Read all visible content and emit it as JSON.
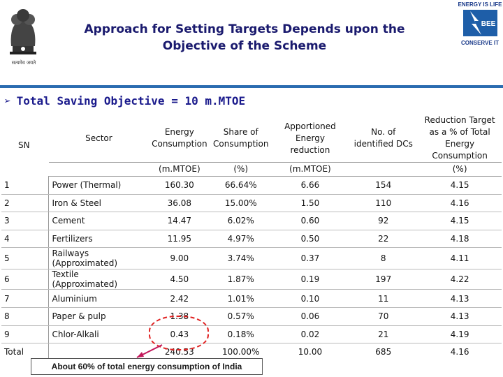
{
  "header": {
    "title_line1": "Approach for Setting Targets Depends upon the",
    "title_line2": "Objective of the Scheme",
    "emblem_caption": "सत्यमेव जयते",
    "logo_text_top": "ENERGY IS LIFE",
    "logo_text_mid": "BEE",
    "logo_text_bottom": "CONSERVE IT"
  },
  "objective": {
    "label": "Total Saving Objective = 10 m.MTOE"
  },
  "table": {
    "headers": {
      "sn": "SN",
      "sector": "Sector",
      "energy": "Energy Consumption",
      "share": "Share of Consumption",
      "apportioned": "Apportioned Energy reduction",
      "dcs": "No. of identified DCs",
      "reduction": "Reduction Target as a % of Total Energy Consumption"
    },
    "units": {
      "energy": "(m.MTOE)",
      "share": "(%)",
      "apportioned": "(m.MTOE)",
      "reduction": "(%)"
    },
    "rows": [
      {
        "sn": "1",
        "sector": "Power (Thermal)",
        "energy": "160.30",
        "share": "66.64%",
        "apportioned": "6.66",
        "dcs": "154",
        "reduction": "4.15"
      },
      {
        "sn": "2",
        "sector": "Iron & Steel",
        "energy": "36.08",
        "share": "15.00%",
        "apportioned": "1.50",
        "dcs": "110",
        "reduction": "4.16"
      },
      {
        "sn": "3",
        "sector": "Cement",
        "energy": "14.47",
        "share": "6.02%",
        "apportioned": "0.60",
        "dcs": "92",
        "reduction": "4.15"
      },
      {
        "sn": "4",
        "sector": "Fertilizers",
        "energy": "11.95",
        "share": "4.97%",
        "apportioned": "0.50",
        "dcs": "22",
        "reduction": "4.18"
      },
      {
        "sn": "5",
        "sector": "Railways (Approximated)",
        "energy": "9.00",
        "share": "3.74%",
        "apportioned": "0.37",
        "dcs": "8",
        "reduction": "4.11"
      },
      {
        "sn": "6",
        "sector": "Textile (Approximated)",
        "energy": "4.50",
        "share": "1.87%",
        "apportioned": "0.19",
        "dcs": "197",
        "reduction": "4.22"
      },
      {
        "sn": "7",
        "sector": "Aluminium",
        "energy": "2.42",
        "share": "1.01%",
        "apportioned": "0.10",
        "dcs": "11",
        "reduction": "4.13"
      },
      {
        "sn": "8",
        "sector": "Paper & pulp",
        "energy": "1.38",
        "share": "0.57%",
        "apportioned": "0.06",
        "dcs": "70",
        "reduction": "4.13"
      },
      {
        "sn": "9",
        "sector": "Chlor-Alkali",
        "energy": "0.43",
        "share": "0.18%",
        "apportioned": "0.02",
        "dcs": "21",
        "reduction": "4.19"
      }
    ],
    "total": {
      "sn": "Total",
      "sector": "",
      "energy": "240.53",
      "share": "100.00%",
      "apportioned": "10.00",
      "dcs": "685",
      "reduction": "4.16"
    }
  },
  "callout": {
    "text": "About 60% of total energy consumption of India"
  },
  "colors": {
    "title": "#1a1a6e",
    "objective": "#1a1a8c",
    "rule": "#2b6cb0",
    "highlight": "#e02020"
  }
}
